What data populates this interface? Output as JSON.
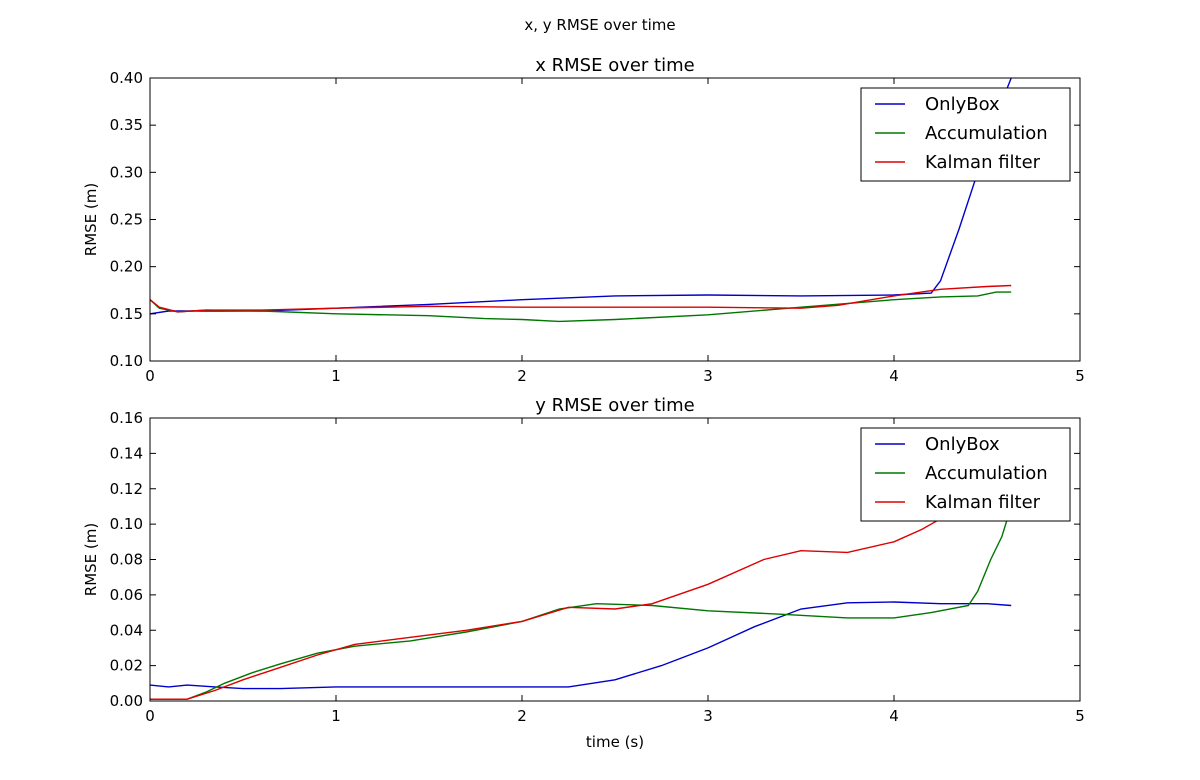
{
  "suptitle": "x, y RMSE over time",
  "colors": {
    "OnlyBox": "#0000cc",
    "Accumulation": "#007700",
    "Kalman filter": "#dd0000"
  },
  "chart_data": [
    {
      "type": "line",
      "title": "x RMSE over time",
      "xlabel": "",
      "ylabel": "RMSE (m)",
      "xlim": [
        0,
        5
      ],
      "ylim": [
        0.1,
        0.4
      ],
      "xticks": [
        "0",
        "1",
        "2",
        "3",
        "4",
        "5"
      ],
      "yticks": [
        "0.10",
        "0.15",
        "0.20",
        "0.25",
        "0.30",
        "0.35",
        "0.40"
      ],
      "legend_position": "top-right",
      "series": [
        {
          "name": "OnlyBox",
          "x": [
            0,
            0.1,
            0.3,
            0.6,
            1.0,
            1.5,
            2.0,
            2.5,
            3.0,
            3.5,
            4.0,
            4.2,
            4.25,
            4.35,
            4.45,
            4.55,
            4.63
          ],
          "y": [
            0.15,
            0.153,
            0.153,
            0.153,
            0.156,
            0.16,
            0.165,
            0.169,
            0.17,
            0.169,
            0.17,
            0.172,
            0.185,
            0.24,
            0.3,
            0.36,
            0.4
          ]
        },
        {
          "name": "Accumulation",
          "x": [
            0,
            0.05,
            0.15,
            0.3,
            0.6,
            1.0,
            1.5,
            1.8,
            2.0,
            2.2,
            2.5,
            3.0,
            3.5,
            4.0,
            4.25,
            4.45,
            4.55,
            4.63
          ],
          "y": [
            0.165,
            0.156,
            0.152,
            0.154,
            0.153,
            0.15,
            0.148,
            0.145,
            0.144,
            0.142,
            0.144,
            0.149,
            0.157,
            0.165,
            0.168,
            0.169,
            0.173,
            0.173
          ]
        },
        {
          "name": "Kalman filter",
          "x": [
            0,
            0.05,
            0.15,
            0.3,
            0.6,
            1.0,
            1.5,
            2.0,
            2.5,
            3.0,
            3.5,
            3.7,
            4.0,
            4.25,
            4.5,
            4.63
          ],
          "y": [
            0.165,
            0.157,
            0.152,
            0.154,
            0.154,
            0.156,
            0.158,
            0.157,
            0.157,
            0.157,
            0.156,
            0.159,
            0.169,
            0.176,
            0.179,
            0.18
          ]
        }
      ]
    },
    {
      "type": "line",
      "title": "y RMSE over time",
      "xlabel": "time (s)",
      "ylabel": "RMSE (m)",
      "xlim": [
        0,
        5
      ],
      "ylim": [
        0.0,
        0.16
      ],
      "xticks": [
        "0",
        "1",
        "2",
        "3",
        "4",
        "5"
      ],
      "yticks": [
        "0.00",
        "0.02",
        "0.04",
        "0.06",
        "0.08",
        "0.10",
        "0.12",
        "0.14",
        "0.16"
      ],
      "legend_position": "top-right",
      "series": [
        {
          "name": "OnlyBox",
          "x": [
            0,
            0.1,
            0.2,
            0.35,
            0.5,
            0.7,
            1.0,
            1.5,
            2.0,
            2.25,
            2.5,
            2.75,
            3.0,
            3.25,
            3.5,
            3.75,
            4.0,
            4.25,
            4.5,
            4.63
          ],
          "y": [
            0.009,
            0.008,
            0.009,
            0.008,
            0.007,
            0.007,
            0.008,
            0.008,
            0.008,
            0.008,
            0.012,
            0.02,
            0.03,
            0.042,
            0.052,
            0.0555,
            0.056,
            0.055,
            0.055,
            0.054
          ]
        },
        {
          "name": "Accumulation",
          "x": [
            0,
            0.2,
            0.3,
            0.4,
            0.55,
            0.7,
            0.9,
            1.1,
            1.4,
            1.7,
            2.0,
            2.2,
            2.4,
            2.7,
            3.0,
            3.4,
            3.75,
            4.0,
            4.2,
            4.4,
            4.45,
            4.52,
            4.58,
            4.63
          ],
          "y": [
            0.001,
            0.001,
            0.005,
            0.01,
            0.016,
            0.021,
            0.027,
            0.031,
            0.034,
            0.039,
            0.045,
            0.052,
            0.055,
            0.054,
            0.051,
            0.049,
            0.047,
            0.047,
            0.05,
            0.054,
            0.062,
            0.08,
            0.093,
            0.11
          ]
        },
        {
          "name": "Kalman filter",
          "x": [
            0,
            0.2,
            0.35,
            0.5,
            0.7,
            0.9,
            1.1,
            1.4,
            1.7,
            2.0,
            2.25,
            2.5,
            2.7,
            3.0,
            3.3,
            3.5,
            3.75,
            4.0,
            4.15,
            4.25
          ],
          "y": [
            0.001,
            0.001,
            0.006,
            0.012,
            0.019,
            0.026,
            0.032,
            0.036,
            0.04,
            0.045,
            0.053,
            0.052,
            0.055,
            0.066,
            0.08,
            0.085,
            0.084,
            0.09,
            0.097,
            0.103
          ]
        }
      ]
    }
  ]
}
